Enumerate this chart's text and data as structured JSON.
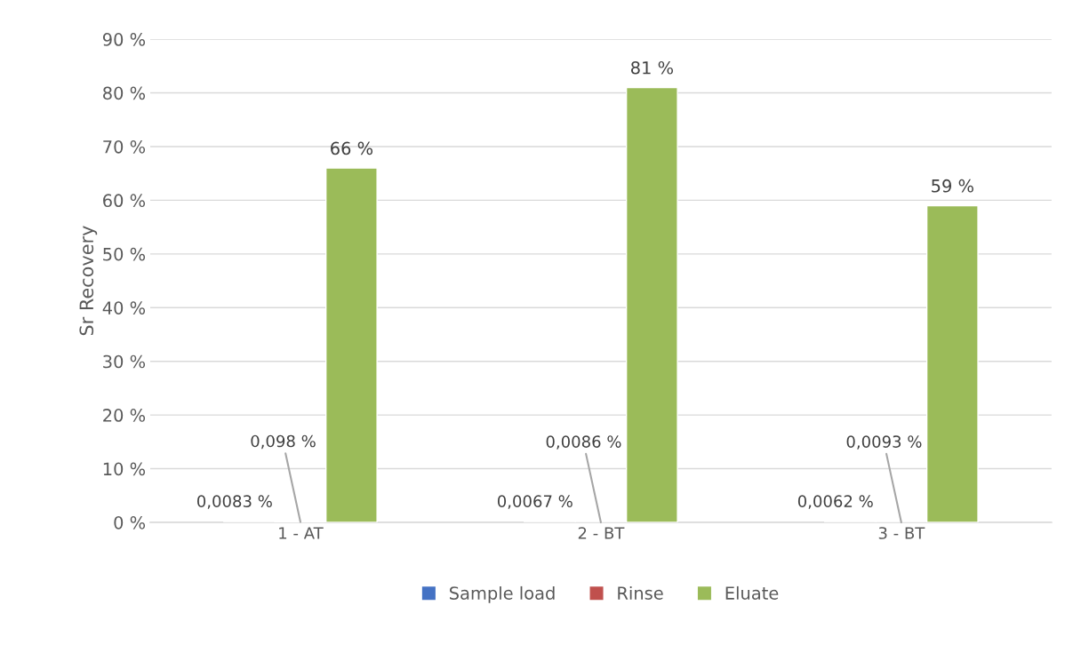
{
  "chart_data": {
    "type": "bar",
    "ylabel": "Sr Recovery",
    "categories": [
      "1 - AT",
      "2 - BT",
      "3 - BT"
    ],
    "series": [
      {
        "name": "Sample load",
        "color": "#4472c4",
        "values": [
          0.0083,
          0.0067,
          0.0062
        ],
        "value_labels": [
          "0,0083 %",
          "0,0067 %",
          "0,0062 %"
        ]
      },
      {
        "name": "Rinse",
        "color": "#c0504d",
        "values": [
          0.098,
          0.0086,
          0.0093
        ],
        "value_labels": [
          "0,098 %",
          "0,0086 %",
          "0,0093 %"
        ]
      },
      {
        "name": "Eluate",
        "color": "#9bbb59",
        "values": [
          66,
          81,
          59
        ],
        "value_labels": [
          "66 %",
          "81 %",
          "59 %"
        ]
      }
    ],
    "ylim": [
      0,
      90
    ],
    "yticks": [
      {
        "value": 0,
        "label": "0 %"
      },
      {
        "value": 10,
        "label": "10 %"
      },
      {
        "value": 20,
        "label": "20 %"
      },
      {
        "value": 30,
        "label": "30 %"
      },
      {
        "value": 40,
        "label": "40 %"
      },
      {
        "value": 50,
        "label": "50 %"
      },
      {
        "value": 60,
        "label": "60 %"
      },
      {
        "value": 70,
        "label": "70 %"
      },
      {
        "value": 80,
        "label": "80 %"
      },
      {
        "value": 90,
        "label": "90 %"
      }
    ],
    "grid": "y",
    "legend": "bottom"
  }
}
